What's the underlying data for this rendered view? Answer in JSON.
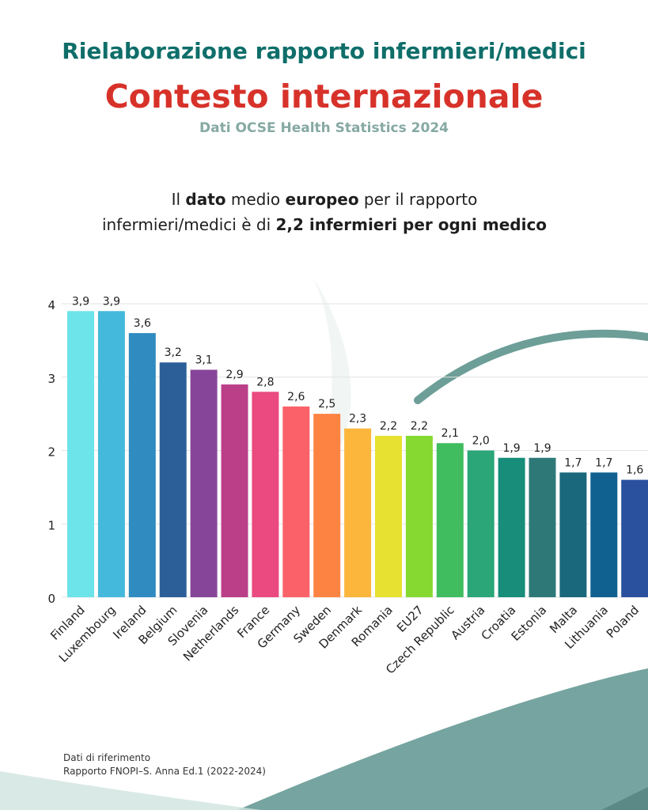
{
  "header": {
    "title": "Rielaborazione rapporto infermieri/medici",
    "subtitle": "Contesto internazionale",
    "source_line": "Dati OCSE Health Statistics 2024"
  },
  "description": {
    "p1": "Il ",
    "b1": "dato",
    "p2": " medio ",
    "b2": "europeo",
    "p3": " per il rapporto",
    "p4": "infermieri/medici è di ",
    "b3": "2,2 infermieri per ogni medico"
  },
  "footer": {
    "line1": "Dati di riferimento",
    "line2": "Rapporto FNOPI–S. Anna Ed.1 (2022-2024)"
  },
  "chart_data": {
    "type": "bar",
    "title": "",
    "xlabel": "",
    "ylabel": "",
    "ylim": [
      0,
      4
    ],
    "yticks": [
      "0",
      "1",
      "2",
      "3",
      "4"
    ],
    "grid": true,
    "categories": [
      "Finland",
      "Luxembourg",
      "Ireland",
      "Belgium",
      "Slovenia",
      "Netherlands",
      "France",
      "Germany",
      "Sweden",
      "Denmark",
      "Romania",
      "EU27",
      "Czech Republic",
      "Austria",
      "Croatia",
      "Estonia",
      "Malta",
      "Lithuania",
      "Poland"
    ],
    "values": [
      3.9,
      3.9,
      3.6,
      3.2,
      3.1,
      2.9,
      2.8,
      2.6,
      2.5,
      2.3,
      2.2,
      2.2,
      2.1,
      2.0,
      1.9,
      1.9,
      1.7,
      1.7,
      1.6
    ],
    "value_labels": [
      "3,9",
      "3,9",
      "3,6",
      "3,2",
      "3,1",
      "2,9",
      "2,8",
      "2,6",
      "2,5",
      "2,3",
      "2,2",
      "2,2",
      "2,1",
      "2,0",
      "1,9",
      "1,9",
      "1,7",
      "1,7",
      "1,6"
    ],
    "colors": [
      "#6de3ea",
      "#45b9db",
      "#2f8bc0",
      "#2c5f98",
      "#874599",
      "#bb3f88",
      "#ea4a7f",
      "#fb6168",
      "#fd8343",
      "#fcb63c",
      "#e7e131",
      "#86d931",
      "#3fbd5f",
      "#2aa679",
      "#178d7a",
      "#2f7878",
      "#1a687b",
      "#10618f",
      "#2a519e"
    ]
  }
}
